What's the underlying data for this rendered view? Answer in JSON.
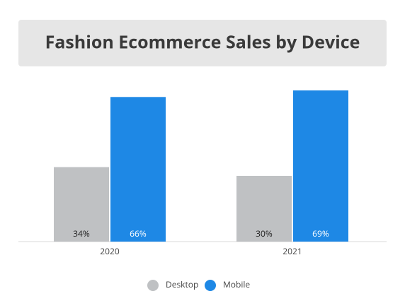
{
  "chart_data": {
    "type": "bar",
    "title": "Fashion Ecommerce Sales by Device",
    "categories": [
      "2020",
      "2021"
    ],
    "series": [
      {
        "name": "Desktop",
        "color": "#bfc1c3",
        "values": [
          34,
          30
        ],
        "value_labels": [
          "34%",
          "30%"
        ]
      },
      {
        "name": "Mobile",
        "color": "#1e88e5",
        "values": [
          66,
          69
        ],
        "value_labels": [
          "66%",
          "69%"
        ]
      }
    ],
    "legend": "bottom"
  }
}
